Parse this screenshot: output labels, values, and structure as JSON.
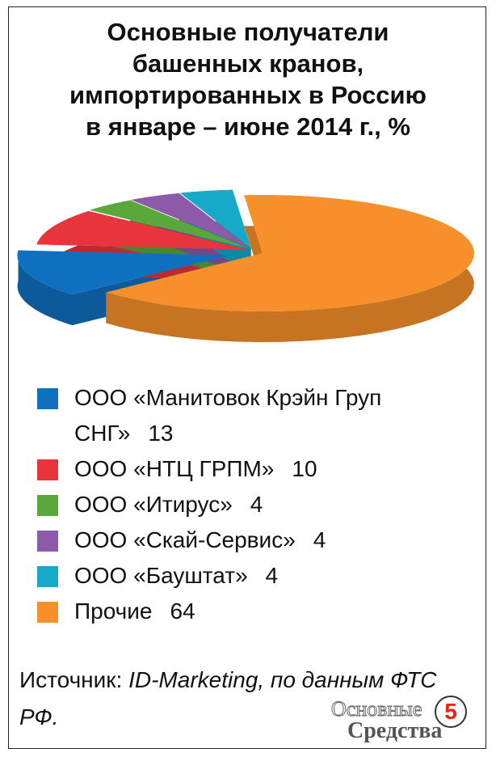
{
  "chart_data": {
    "type": "pie",
    "title": "Основные получатели\nбашенных кранов,\nимпортированных в Россию\nв январе – июне 2014 г., %",
    "categories": [
      "ООО «Манитовок Крэйн Груп СНГ»",
      "ООО «НТЦ ГРПМ»",
      "ООО «Итирус»",
      "ООО «Скай-Сервис»",
      "ООО «Бауштат»",
      "Прочие"
    ],
    "values": [
      13,
      10,
      4,
      4,
      4,
      64
    ],
    "colors": [
      "#1070c0",
      "#e8343c",
      "#5aa83c",
      "#8c5aa8",
      "#18a8c8",
      "#f7902a"
    ],
    "source_label": "Источник:",
    "source_text": "ID-Marketing, по данным ФТС РФ."
  },
  "logo": {
    "line1": "Основные",
    "line2": "Средства",
    "badge": "5"
  }
}
